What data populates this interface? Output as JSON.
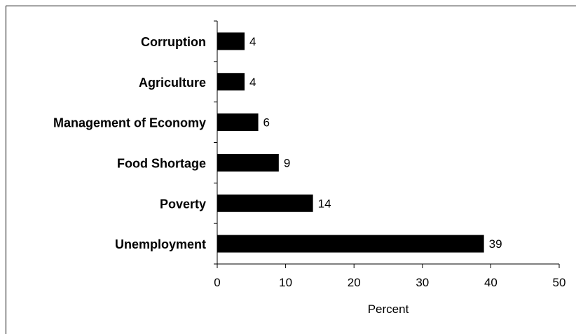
{
  "chart_data": {
    "type": "bar",
    "orientation": "horizontal",
    "categories": [
      "Corruption",
      "Agriculture",
      "Management of Economy",
      "Food Shortage",
      "Poverty",
      "Unemployment"
    ],
    "values": [
      4,
      4,
      6,
      9,
      14,
      39
    ],
    "value_labels": [
      "4",
      "4",
      "6",
      "9",
      "14",
      "39"
    ],
    "xlabel": "Percent",
    "xlim": [
      0,
      50
    ],
    "xticks": [
      0,
      10,
      20,
      30,
      40,
      50
    ],
    "xtick_labels": [
      "0",
      "10",
      "20",
      "30",
      "40",
      "50"
    ],
    "grid": false,
    "bar_color": "#000000"
  }
}
